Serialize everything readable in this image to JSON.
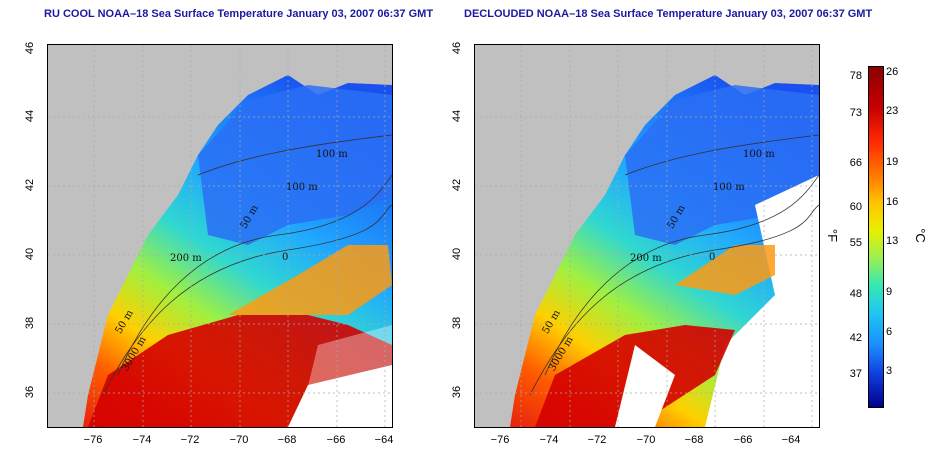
{
  "titles": {
    "left": "RU COOL NOAA–18 Sea Surface Temperature January 03, 2007 06:37 GMT",
    "right": "DECLOUDED NOAA–18 Sea Surface Temperature January 03, 2007 06:37 GMT"
  },
  "y_ticks": [
    "46",
    "44",
    "42",
    "40",
    "38",
    "36"
  ],
  "x_ticks": [
    "−76",
    "−74",
    "−72",
    "−70",
    "−68",
    "−66",
    "−64"
  ],
  "contour_labels": [
    "100 m",
    "100 m",
    "50 m",
    "200 m",
    "50 m",
    "3000 m",
    "0"
  ],
  "colorbar": {
    "fahrenheit_label": "°F",
    "celsius_label": "°C",
    "fahrenheit_ticks": [
      "78",
      "73",
      "66",
      "60",
      "55",
      "48",
      "42",
      "37"
    ],
    "celsius_ticks": [
      "26",
      "23",
      "19",
      "16",
      "13",
      "9",
      "6",
      "3"
    ]
  },
  "colors": {
    "land": "#c0c0c0",
    "cold": "#1a5cff",
    "warm": "#d00000",
    "title": "#1a1aa0"
  }
}
